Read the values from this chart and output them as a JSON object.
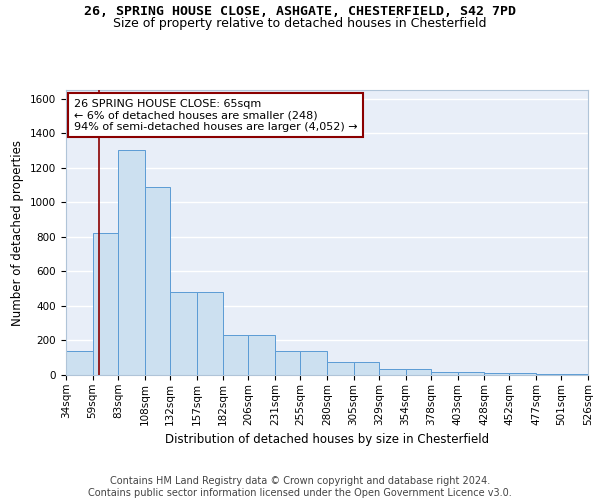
{
  "title1": "26, SPRING HOUSE CLOSE, ASHGATE, CHESTERFIELD, S42 7PD",
  "title2": "Size of property relative to detached houses in Chesterfield",
  "xlabel": "Distribution of detached houses by size in Chesterfield",
  "ylabel": "Number of detached properties",
  "bin_edges": [
    34,
    59,
    83,
    108,
    132,
    157,
    182,
    206,
    231,
    255,
    280,
    305,
    329,
    354,
    378,
    403,
    428,
    452,
    477,
    501,
    526
  ],
  "bar_heights": [
    140,
    820,
    1300,
    1090,
    480,
    480,
    230,
    230,
    140,
    140,
    75,
    75,
    35,
    35,
    20,
    20,
    10,
    10,
    5,
    5
  ],
  "bar_color": "#cce0f0",
  "bar_edge_color": "#5b9bd5",
  "vline_x": 65,
  "vline_color": "#8b0000",
  "annotation_line1": "26 SPRING HOUSE CLOSE: 65sqm",
  "annotation_line2": "← 6% of detached houses are smaller (248)",
  "annotation_line3": "94% of semi-detached houses are larger (4,052) →",
  "annotation_box_color": "#8b0000",
  "ylim": [
    0,
    1650
  ],
  "yticks": [
    0,
    200,
    400,
    600,
    800,
    1000,
    1200,
    1400,
    1600
  ],
  "background_color": "#e8eef8",
  "grid_color": "white",
  "footnote": "Contains HM Land Registry data © Crown copyright and database right 2024.\nContains public sector information licensed under the Open Government Licence v3.0.",
  "title_fontsize": 9.5,
  "subtitle_fontsize": 9,
  "axis_label_fontsize": 8.5,
  "tick_fontsize": 7.5,
  "annotation_fontsize": 8,
  "footnote_fontsize": 7
}
